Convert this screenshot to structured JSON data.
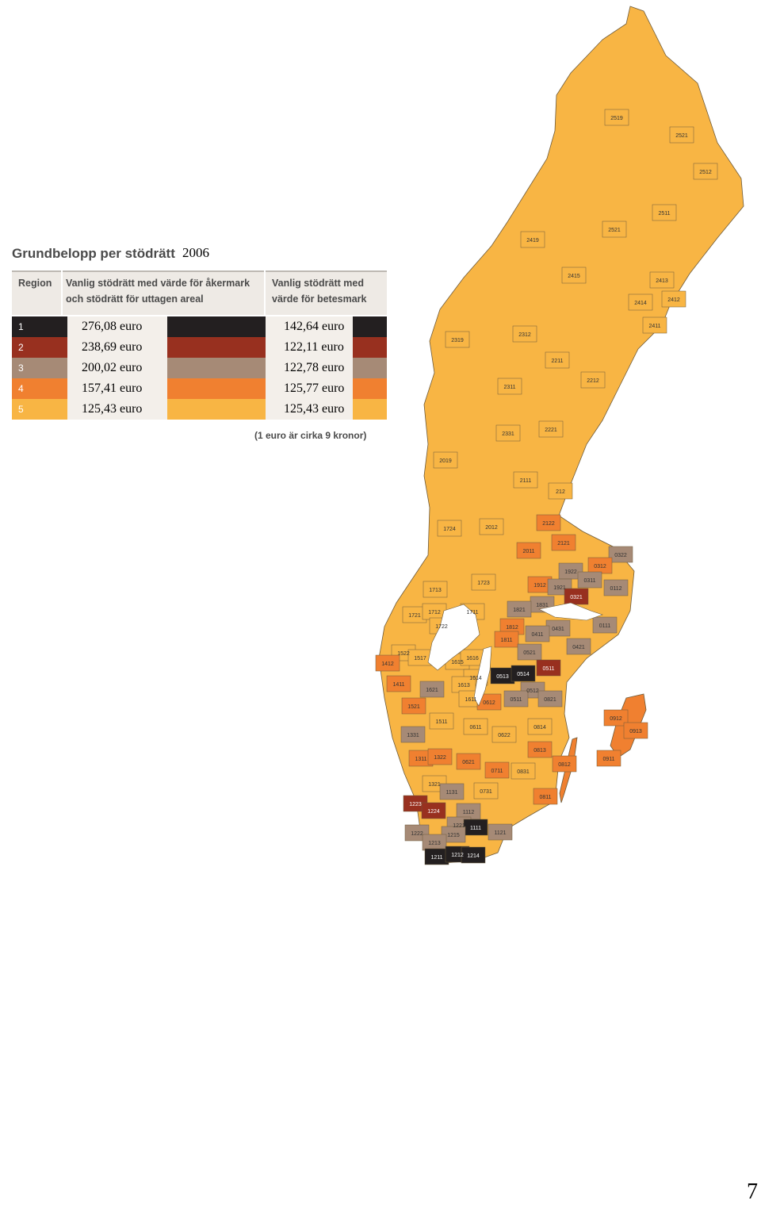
{
  "legend": {
    "title": "Grundbelopp per stödrätt",
    "year": "2006",
    "headers": {
      "region": "Region",
      "col1_line1": "Vanlig stödrätt med värde för åkermark",
      "col1_line2": "och stödrätt för uttagen areal",
      "col2_line1": "Vanlig stödrätt med",
      "col2_line2": "värde för betesmark"
    },
    "rows": [
      {
        "region": "1",
        "col1": "276,08 euro",
        "col2": "142,64 euro",
        "color": "#231f20",
        "text_color": "#ffffff"
      },
      {
        "region": "2",
        "col1": "238,69 euro",
        "col2": "122,11 euro",
        "color": "#98301f",
        "text_color": "#ffffff"
      },
      {
        "region": "3",
        "col1": "200,02 euro",
        "col2": "122,78 euro",
        "color": "#a68a76",
        "text_color": "#ffffff"
      },
      {
        "region": "4",
        "col1": "157,41 euro",
        "col2": "125,77 euro",
        "color": "#f08030",
        "text_color": "#ffffff"
      },
      {
        "region": "5",
        "col1": "125,43 euro",
        "col2": "125,43 euro",
        "color": "#f8b544",
        "text_color": "#ffffff"
      }
    ],
    "note": "(1 euro är cirka 9 kronor)"
  },
  "map": {
    "regions": [
      {
        "code": "2519",
        "color": "#f8b544"
      },
      {
        "code": "2521",
        "color": "#f8b544"
      },
      {
        "code": "2512",
        "color": "#f8b544"
      },
      {
        "code": "2511",
        "color": "#f8b544"
      },
      {
        "code": "2419",
        "color": "#f8b544"
      },
      {
        "code": "2521",
        "color": "#f8b544"
      },
      {
        "code": "2415",
        "color": "#f8b544"
      },
      {
        "code": "2413",
        "color": "#f8b544"
      },
      {
        "code": "2414",
        "color": "#f8b544"
      },
      {
        "code": "2412",
        "color": "#f8b544"
      },
      {
        "code": "2411",
        "color": "#f8b544"
      },
      {
        "code": "2319",
        "color": "#f8b544"
      },
      {
        "code": "2312",
        "color": "#f8b544"
      },
      {
        "code": "2211",
        "color": "#f8b544"
      },
      {
        "code": "2212",
        "color": "#f8b544"
      },
      {
        "code": "2311",
        "color": "#f8b544"
      },
      {
        "code": "2331",
        "color": "#f8b544"
      },
      {
        "code": "2221",
        "color": "#f8b544"
      },
      {
        "code": "2019",
        "color": "#f8b544"
      },
      {
        "code": "2111",
        "color": "#f8b544"
      },
      {
        "code": "212",
        "color": "#f8b544"
      },
      {
        "code": "1724",
        "color": "#f8b544"
      },
      {
        "code": "2012",
        "color": "#f8b544"
      },
      {
        "code": "2122",
        "color": "#f08030"
      },
      {
        "code": "2011",
        "color": "#f08030"
      },
      {
        "code": "2121",
        "color": "#f08030"
      },
      {
        "code": "0322",
        "color": "#a68a76"
      },
      {
        "code": "1922",
        "color": "#a68a76"
      },
      {
        "code": "0312",
        "color": "#f08030"
      },
      {
        "code": "0311",
        "color": "#a68a76"
      },
      {
        "code": "1723",
        "color": "#f8b544"
      },
      {
        "code": "1912",
        "color": "#f08030"
      },
      {
        "code": "1921",
        "color": "#a68a76"
      },
      {
        "code": "0112",
        "color": "#a68a76"
      },
      {
        "code": "1713",
        "color": "#f8b544"
      },
      {
        "code": "0321",
        "color": "#98301f"
      },
      {
        "code": "1831",
        "color": "#a68a76"
      },
      {
        "code": "1821",
        "color": "#a68a76"
      },
      {
        "code": "1721",
        "color": "#f8b544"
      },
      {
        "code": "1712",
        "color": "#f8b544"
      },
      {
        "code": "1711",
        "color": "#f8b544"
      },
      {
        "code": "1722",
        "color": "#f8b544"
      },
      {
        "code": "1812",
        "color": "#f08030"
      },
      {
        "code": "0431",
        "color": "#a68a76"
      },
      {
        "code": "0111",
        "color": "#a68a76"
      },
      {
        "code": "0411",
        "color": "#a68a76"
      },
      {
        "code": "1811",
        "color": "#f08030"
      },
      {
        "code": "0421",
        "color": "#a68a76"
      },
      {
        "code": "1522",
        "color": "#f8b544"
      },
      {
        "code": "1517",
        "color": "#f8b544"
      },
      {
        "code": "1615",
        "color": "#f8b544"
      },
      {
        "code": "1616",
        "color": "#f8b544"
      },
      {
        "code": "0521",
        "color": "#a68a76"
      },
      {
        "code": "1412",
        "color": "#f08030"
      },
      {
        "code": "0513",
        "color": "#231f20"
      },
      {
        "code": "0514",
        "color": "#231f20"
      },
      {
        "code": "0511",
        "color": "#98301f"
      },
      {
        "code": "1614",
        "color": "#f8b544"
      },
      {
        "code": "1411",
        "color": "#f08030"
      },
      {
        "code": "1621",
        "color": "#a68a76"
      },
      {
        "code": "1613",
        "color": "#f8b544"
      },
      {
        "code": "0512",
        "color": "#a68a76"
      },
      {
        "code": "0821",
        "color": "#a68a76"
      },
      {
        "code": "1611",
        "color": "#f8b544"
      },
      {
        "code": "0612",
        "color": "#f08030"
      },
      {
        "code": "0511",
        "color": "#a68a76"
      },
      {
        "code": "1521",
        "color": "#f08030"
      },
      {
        "code": "0912",
        "color": "#f08030"
      },
      {
        "code": "1511",
        "color": "#f8b544"
      },
      {
        "code": "0611",
        "color": "#f8b544"
      },
      {
        "code": "0814",
        "color": "#f8b544"
      },
      {
        "code": "0913",
        "color": "#f08030"
      },
      {
        "code": "1331",
        "color": "#a68a76"
      },
      {
        "code": "0622",
        "color": "#f8b544"
      },
      {
        "code": "0813",
        "color": "#f08030"
      },
      {
        "code": "1311",
        "color": "#f08030"
      },
      {
        "code": "1322",
        "color": "#f08030"
      },
      {
        "code": "0621",
        "color": "#f08030"
      },
      {
        "code": "0911",
        "color": "#f08030"
      },
      {
        "code": "0812",
        "color": "#f08030"
      },
      {
        "code": "0711",
        "color": "#f08030"
      },
      {
        "code": "0831",
        "color": "#f8b544"
      },
      {
        "code": "1321",
        "color": "#f8b544"
      },
      {
        "code": "1131",
        "color": "#a68a76"
      },
      {
        "code": "0731",
        "color": "#f8b544"
      },
      {
        "code": "0811",
        "color": "#f08030"
      },
      {
        "code": "1223",
        "color": "#98301f"
      },
      {
        "code": "1112",
        "color": "#a68a76"
      },
      {
        "code": "1224",
        "color": "#98301f"
      },
      {
        "code": "1221",
        "color": "#a68a76"
      },
      {
        "code": "1111",
        "color": "#231f20"
      },
      {
        "code": "1121",
        "color": "#a68a76"
      },
      {
        "code": "1222",
        "color": "#a68a76"
      },
      {
        "code": "1215",
        "color": "#a68a76"
      },
      {
        "code": "1213",
        "color": "#a68a76"
      },
      {
        "code": "1211",
        "color": "#231f20"
      },
      {
        "code": "1212",
        "color": "#231f20"
      },
      {
        "code": "1214",
        "color": "#231f20"
      }
    ]
  },
  "page_number": "7"
}
